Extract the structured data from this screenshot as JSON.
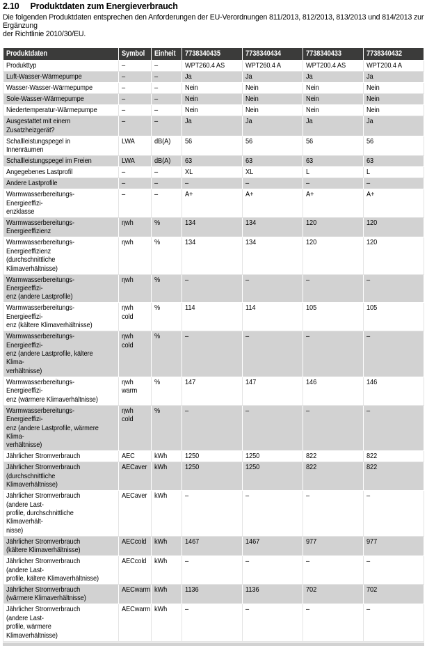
{
  "page": {
    "section_number": "2.10",
    "title": "Produktdaten zum Energieverbrauch",
    "intro": "Die folgenden Produktdaten entsprechen den Anforderungen der EU-Verordnungen 811/2013, 812/2013, 813/2013 und 814/2013 zur Ergänzung\nder Richtlinie 2010/30/EU."
  },
  "colors": {
    "header_bg": "#3b3b3a",
    "alt_row_bg": "#d2d2d2",
    "header_text": "#ffffff",
    "body_text": "#000000"
  },
  "table": {
    "columns": [
      "Produktdaten",
      "Symbol",
      "Einheit",
      "7738340435",
      "7738340434",
      "7738340433",
      "7738340432"
    ],
    "rows": [
      {
        "label": "Produkttyp",
        "symbol": "–",
        "unit": "–",
        "values": [
          "WPT260.4 AS",
          "WPT260.4 A",
          "WPT200.4 AS",
          "WPT200.4 A"
        ]
      },
      {
        "label": "Luft-Wasser-Wärmepumpe",
        "symbol": "–",
        "unit": "–",
        "values": [
          "Ja",
          "Ja",
          "Ja",
          "Ja"
        ]
      },
      {
        "label": "Wasser-Wasser-Wärmepumpe",
        "symbol": "–",
        "unit": "–",
        "values": [
          "Nein",
          "Nein",
          "Nein",
          "Nein"
        ]
      },
      {
        "label": "Sole-Wasser-Wärmepumpe",
        "symbol": "–",
        "unit": "–",
        "values": [
          "Nein",
          "Nein",
          "Nein",
          "Nein"
        ]
      },
      {
        "label": "Niedertemperatur-Wärmepumpe",
        "symbol": "–",
        "unit": "–",
        "values": [
          "Nein",
          "Nein",
          "Nein",
          "Nein"
        ]
      },
      {
        "label": "Ausgestattet mit einem Zusatzheizgerät?",
        "symbol": "–",
        "unit": "–",
        "values": [
          "Ja",
          "Ja",
          "Ja",
          "Ja"
        ]
      },
      {
        "label": "Schallleistungspegel in Innenräumen",
        "symbol": "LWA",
        "unit": "dB(A)",
        "values": [
          "56",
          "56",
          "56",
          "56"
        ]
      },
      {
        "label": "Schallleistungspegel im Freien",
        "symbol": "LWA",
        "unit": "dB(A)",
        "values": [
          "63",
          "63",
          "63",
          "63"
        ]
      },
      {
        "label": "Angegebenes Lastprofil",
        "symbol": "–",
        "unit": "–",
        "values": [
          "XL",
          "XL",
          "L",
          "L"
        ]
      },
      {
        "label": "Andere Lastprofile",
        "symbol": "–",
        "unit": "–",
        "values": [
          "–",
          "–",
          "–",
          "–"
        ]
      },
      {
        "label": "Warmwasserbereitungs-Energieeffizi-\nenzklasse",
        "symbol": "–",
        "unit": "–",
        "values": [
          "A+",
          "A+",
          "A+",
          "A+"
        ]
      },
      {
        "label": "Warmwasserbereitungs-Energieeffizienz",
        "symbol": "ηwh",
        "unit": "%",
        "values": [
          "134",
          "134",
          "120",
          "120"
        ]
      },
      {
        "label": "Warmwasserbereitungs-Energieeffizienz\n(durchschnittliche Klimaverhältnisse)",
        "symbol": "ηwh",
        "unit": "%",
        "values": [
          "134",
          "134",
          "120",
          "120"
        ]
      },
      {
        "label": "Warmwasserbereitungs-Energieeffizi-\nenz (andere Lastprofile)",
        "symbol": "ηwh",
        "unit": "%",
        "values": [
          "–",
          "–",
          "–",
          "–"
        ]
      },
      {
        "label": "Warmwasserbereitungs-Energieeffizi-\nenz (kältere Klimaverhältnisse)",
        "symbol": "ηwh cold",
        "unit": "%",
        "values": [
          "114",
          "114",
          "105",
          "105"
        ]
      },
      {
        "label": "Warmwasserbereitungs-Energieeffizi-\nenz (andere Lastprofile, kältere Klima-\nverhältnisse)",
        "symbol": "ηwh cold",
        "unit": "%",
        "values": [
          "–",
          "–",
          "–",
          "–"
        ]
      },
      {
        "label": "Warmwasserbereitungs-Energieeffizi-\nenz (wärmere Klimaverhältnisse)",
        "symbol": "ηwh warm",
        "unit": "%",
        "values": [
          "147",
          "147",
          "146",
          "146"
        ]
      },
      {
        "label": "Warmwasserbereitungs-Energieeffizi-\nenz (andere Lastprofile, wärmere Klima-\nverhältnisse)",
        "symbol": "ηwh cold",
        "unit": "%",
        "values": [
          "–",
          "–",
          "–",
          "–"
        ]
      },
      {
        "label": "Jährlicher Stromverbrauch",
        "symbol": "AEC",
        "unit": "kWh",
        "values": [
          "1250",
          "1250",
          "822",
          "822"
        ]
      },
      {
        "label": "Jährlicher Stromverbrauch\n(durchschnittliche Klimaverhältnisse)",
        "symbol": "AECaver",
        "unit": "kWh",
        "values": [
          "1250",
          "1250",
          "822",
          "822"
        ]
      },
      {
        "label": "Jährlicher Stromverbrauch (andere Last-\nprofile, durchschnittliche Klimaverhält-\nnisse)",
        "symbol": "AECaver",
        "unit": "kWh",
        "values": [
          "–",
          "–",
          "–",
          "–"
        ]
      },
      {
        "label": "Jährlicher Stromverbrauch\n(kältere Klimaverhältnisse)",
        "symbol": "AECcold",
        "unit": "kWh",
        "values": [
          "1467",
          "1467",
          "977",
          "977"
        ]
      },
      {
        "label": "Jährlicher Stromverbrauch (andere Last-\nprofile, kältere Klimaverhältnisse)",
        "symbol": "AECcold",
        "unit": "kWh",
        "values": [
          "–",
          "–",
          "–",
          "–"
        ]
      },
      {
        "label": "Jährlicher Stromverbrauch\n(wärmere Klimaverhältnisse)",
        "symbol": "AECwarm",
        "unit": "kWh",
        "values": [
          "1136",
          "1136",
          "702",
          "702"
        ]
      },
      {
        "label": "Jährlicher Stromverbrauch (andere Last-\nprofile, wärmere Klimaverhältnisse)",
        "symbol": "AECwarm",
        "unit": "kWh",
        "values": [
          "–",
          "–",
          "–",
          "–"
        ]
      }
    ]
  }
}
